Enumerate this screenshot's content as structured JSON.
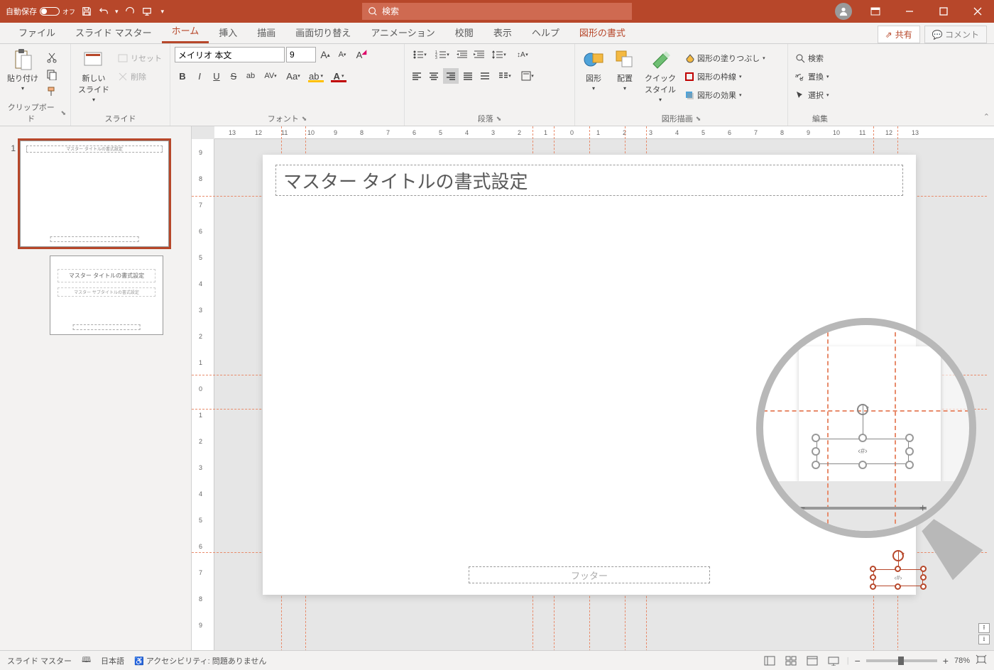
{
  "titlebar": {
    "autosave_label": "自動保存",
    "autosave_state": "オフ",
    "search_placeholder": "検索"
  },
  "tabs": {
    "file": "ファイル",
    "slide_master": "スライド マスター",
    "home": "ホーム",
    "insert": "挿入",
    "draw": "描画",
    "transition": "画面切り替え",
    "animation": "アニメーション",
    "review": "校閲",
    "view": "表示",
    "help": "ヘルプ",
    "shape_format": "図形の書式",
    "share": "共有",
    "comment": "コメント"
  },
  "ribbon": {
    "clipboard": {
      "group": "クリップボード",
      "paste": "貼り付け"
    },
    "slides": {
      "group": "スライド",
      "new_slide": "新しい\nスライド",
      "reset": "リセット",
      "delete": "削除"
    },
    "font": {
      "group": "フォント",
      "name": "メイリオ 本文",
      "size": "9"
    },
    "paragraph": {
      "group": "段落"
    },
    "drawing": {
      "group": "図形描画",
      "shapes": "図形",
      "arrange": "配置",
      "quick_styles": "クイック\nスタイル",
      "fill": "図形の塗りつぶし",
      "outline": "図形の枠線",
      "effects": "図形の効果"
    },
    "editing": {
      "group": "編集",
      "find": "検索",
      "replace": "置換",
      "select": "選択"
    }
  },
  "ruler_h": [
    "13",
    "12",
    "11",
    "10",
    "9",
    "8",
    "7",
    "6",
    "5",
    "4",
    "3",
    "2",
    "1",
    "0",
    "1",
    "2",
    "3",
    "4",
    "5",
    "6",
    "7",
    "8",
    "9",
    "10",
    "11",
    "12",
    "13"
  ],
  "ruler_v": [
    "9",
    "8",
    "7",
    "6",
    "5",
    "4",
    "3",
    "2",
    "1",
    "0",
    "1",
    "2",
    "3",
    "4",
    "5",
    "6",
    "7",
    "8",
    "9"
  ],
  "slide": {
    "master_title": "マスター タイトルの書式設定",
    "footer_placeholder": "フッター",
    "page_num_placeholder": "‹#›"
  },
  "thumbs": {
    "num1": "1",
    "layout_title": "マスター タイトルの書式設定",
    "layout_sub": "マスター サブタイトルの書式設定"
  },
  "status": {
    "mode": "スライド マスター",
    "lang": "日本語",
    "a11y_label": "アクセシビリティ:",
    "a11y_status": "問題ありません",
    "zoom": "78%"
  },
  "colors": {
    "brand": "#b7472a",
    "guide": "#e88b6b",
    "highlight_yellow": "#ffc000",
    "font_red": "#c00000"
  }
}
